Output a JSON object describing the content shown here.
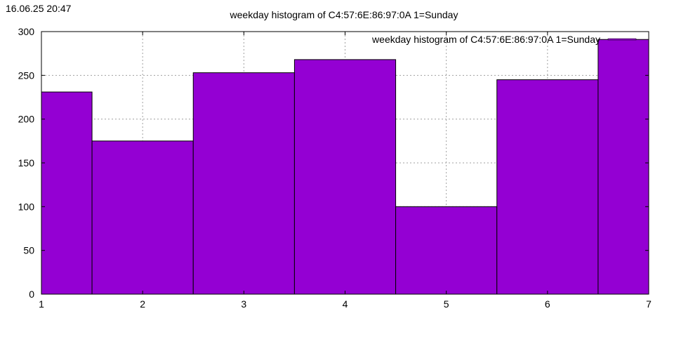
{
  "timestamp": "16.06.25 20:47",
  "chart_data": {
    "type": "bar",
    "title": "weekday histogram of C4:57:6E:86:97:0A 1=Sunday",
    "xlabel": "",
    "ylabel": "",
    "categories": [
      1,
      2,
      3,
      4,
      5,
      6,
      7
    ],
    "series": [
      {
        "name": "weekday histogram of C4:57:6E:86:97:0A 1=Sunday",
        "values": [
          231,
          175,
          253,
          268,
          100,
          245,
          291
        ]
      }
    ],
    "xlim": [
      1,
      7
    ],
    "ylim": [
      0,
      300
    ],
    "x_ticks": [
      "1",
      "2",
      "3",
      "4",
      "5",
      "6",
      "7"
    ],
    "y_ticks": [
      "0",
      "50",
      "100",
      "150",
      "200",
      "250",
      "300"
    ],
    "grid": true,
    "legend_position": "top-right",
    "bar_color": "#9400d3"
  }
}
